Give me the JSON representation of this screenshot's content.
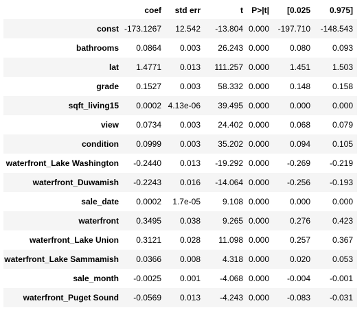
{
  "table": {
    "columns": [
      "",
      "coef",
      "std err",
      "t",
      "P>|t|",
      "[0.025",
      "0.975]"
    ],
    "rows": [
      {
        "name": "const",
        "coef": "-173.1267",
        "std_err": "12.542",
        "t": "-13.804",
        "p": "0.000",
        "lo": "-197.710",
        "hi": "-148.543"
      },
      {
        "name": "bathrooms",
        "coef": "0.0864",
        "std_err": "0.003",
        "t": "26.243",
        "p": "0.000",
        "lo": "0.080",
        "hi": "0.093"
      },
      {
        "name": "lat",
        "coef": "1.4771",
        "std_err": "0.013",
        "t": "111.257",
        "p": "0.000",
        "lo": "1.451",
        "hi": "1.503"
      },
      {
        "name": "grade",
        "coef": "0.1527",
        "std_err": "0.003",
        "t": "58.332",
        "p": "0.000",
        "lo": "0.148",
        "hi": "0.158"
      },
      {
        "name": "sqft_living15",
        "coef": "0.0002",
        "std_err": "4.13e-06",
        "t": "39.495",
        "p": "0.000",
        "lo": "0.000",
        "hi": "0.000"
      },
      {
        "name": "view",
        "coef": "0.0734",
        "std_err": "0.003",
        "t": "24.402",
        "p": "0.000",
        "lo": "0.068",
        "hi": "0.079"
      },
      {
        "name": "condition",
        "coef": "0.0999",
        "std_err": "0.003",
        "t": "35.202",
        "p": "0.000",
        "lo": "0.094",
        "hi": "0.105"
      },
      {
        "name": "waterfront_Lake Washington",
        "coef": "-0.2440",
        "std_err": "0.013",
        "t": "-19.292",
        "p": "0.000",
        "lo": "-0.269",
        "hi": "-0.219"
      },
      {
        "name": "waterfront_Duwamish",
        "coef": "-0.2243",
        "std_err": "0.016",
        "t": "-14.064",
        "p": "0.000",
        "lo": "-0.256",
        "hi": "-0.193"
      },
      {
        "name": "sale_date",
        "coef": "0.0002",
        "std_err": "1.7e-05",
        "t": "9.108",
        "p": "0.000",
        "lo": "0.000",
        "hi": "0.000"
      },
      {
        "name": "waterfront",
        "coef": "0.3495",
        "std_err": "0.038",
        "t": "9.265",
        "p": "0.000",
        "lo": "0.276",
        "hi": "0.423"
      },
      {
        "name": "waterfront_Lake Union",
        "coef": "0.3121",
        "std_err": "0.028",
        "t": "11.098",
        "p": "0.000",
        "lo": "0.257",
        "hi": "0.367"
      },
      {
        "name": "waterfront_Lake Sammamish",
        "coef": "0.0366",
        "std_err": "0.008",
        "t": "4.318",
        "p": "0.000",
        "lo": "0.020",
        "hi": "0.053"
      },
      {
        "name": "sale_month",
        "coef": "-0.0025",
        "std_err": "0.001",
        "t": "-4.068",
        "p": "0.000",
        "lo": "-0.004",
        "hi": "-0.001"
      },
      {
        "name": "waterfront_Puget Sound",
        "coef": "-0.0569",
        "std_err": "0.013",
        "t": "-4.243",
        "p": "0.000",
        "lo": "-0.083",
        "hi": "-0.031"
      }
    ]
  },
  "colors": {
    "stripe": "#f5f5f5",
    "text": "#000000"
  }
}
